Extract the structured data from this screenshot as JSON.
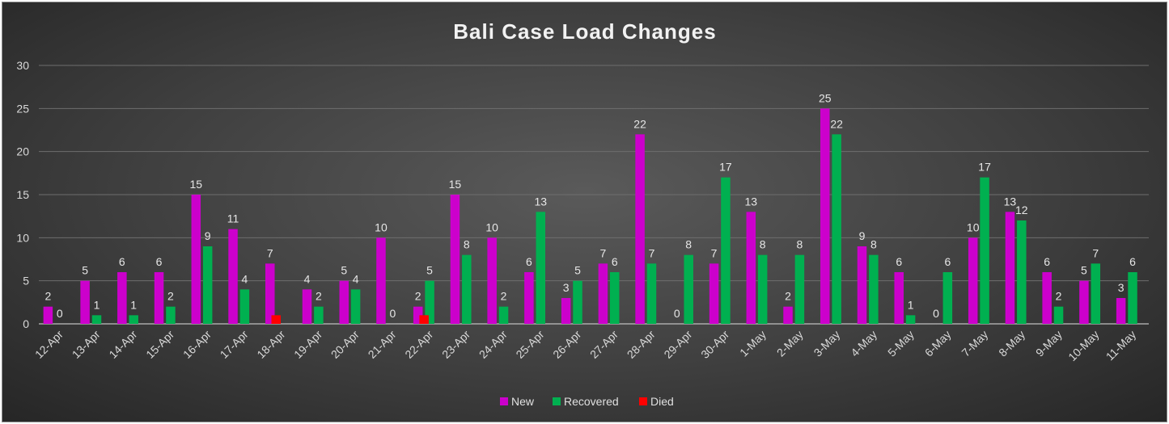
{
  "chart_data": {
    "type": "bar",
    "title": "Bali Case Load Changes",
    "xlabel": "",
    "ylabel": "",
    "ylim": [
      0,
      30
    ],
    "yticks": [
      0,
      5,
      10,
      15,
      20,
      25,
      30
    ],
    "grid": true,
    "legend_position": "bottom",
    "categories": [
      "12-Apr",
      "13-Apr",
      "14-Apr",
      "15-Apr",
      "16-Apr",
      "17-Apr",
      "18-Apr",
      "19-Apr",
      "20-Apr",
      "21-Apr",
      "22-Apr",
      "23-Apr",
      "24-Apr",
      "25-Apr",
      "26-Apr",
      "27-Apr",
      "28-Apr",
      "29-Apr",
      "30-Apr",
      "1-May",
      "2-May",
      "3-May",
      "4-May",
      "5-May",
      "6-May",
      "7-May",
      "8-May",
      "9-May",
      "10-May",
      "11-May"
    ],
    "series": [
      {
        "name": "New",
        "color": "#cc00cc",
        "values": [
          2,
          5,
          6,
          6,
          15,
          11,
          7,
          4,
          5,
          10,
          2,
          15,
          10,
          6,
          3,
          7,
          22,
          0,
          7,
          13,
          2,
          25,
          9,
          6,
          0,
          10,
          13,
          6,
          5,
          3
        ],
        "labeled": [
          true,
          true,
          true,
          true,
          true,
          true,
          true,
          true,
          true,
          true,
          true,
          true,
          true,
          true,
          true,
          true,
          true,
          true,
          true,
          true,
          true,
          true,
          true,
          true,
          true,
          true,
          true,
          true,
          true,
          true
        ]
      },
      {
        "name": "Recovered",
        "color": "#00b050",
        "values": [
          0,
          1,
          1,
          2,
          9,
          4,
          0,
          2,
          4,
          0,
          5,
          8,
          2,
          13,
          5,
          6,
          7,
          8,
          17,
          8,
          8,
          22,
          8,
          1,
          6,
          17,
          12,
          2,
          7,
          6
        ],
        "labeled": [
          true,
          true,
          true,
          true,
          true,
          true,
          false,
          true,
          true,
          true,
          true,
          true,
          true,
          true,
          true,
          true,
          true,
          true,
          true,
          true,
          true,
          true,
          true,
          true,
          true,
          true,
          true,
          true,
          true,
          true
        ]
      },
      {
        "name": "Died",
        "color": "#ff0000",
        "values": [
          0,
          0,
          0,
          0,
          0,
          0,
          1,
          0,
          0,
          0,
          1,
          0,
          0,
          0,
          0,
          0,
          0,
          0,
          0,
          0,
          0,
          0,
          0,
          0,
          0,
          0,
          0,
          0,
          0,
          0
        ],
        "labeled": [
          false,
          false,
          false,
          false,
          false,
          false,
          false,
          false,
          false,
          false,
          false,
          false,
          false,
          false,
          false,
          false,
          false,
          false,
          false,
          false,
          false,
          false,
          false,
          false,
          false,
          false,
          false,
          false,
          false,
          false
        ]
      }
    ]
  }
}
